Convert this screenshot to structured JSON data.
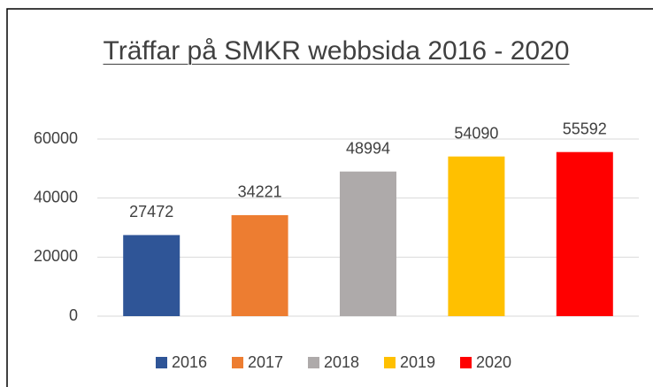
{
  "chart_data": {
    "type": "bar",
    "title": "Träffar på SMKR webbsida 2016 - 2020",
    "categories": [
      null
    ],
    "series": [
      {
        "name": "2016",
        "color": "#2f5597",
        "values": [
          27472
        ]
      },
      {
        "name": "2017",
        "color": "#ed7d31",
        "values": [
          34221
        ]
      },
      {
        "name": "2018",
        "color": "#aeaaaa",
        "values": [
          48994
        ]
      },
      {
        "name": "2019",
        "color": "#ffc000",
        "values": [
          54090
        ]
      },
      {
        "name": "2020",
        "color": "#ff0000",
        "values": [
          55592
        ]
      }
    ],
    "ylim": [
      0,
      60000
    ],
    "yticks": [
      0,
      20000,
      40000,
      60000
    ],
    "grid": true,
    "legend": "bottom"
  }
}
